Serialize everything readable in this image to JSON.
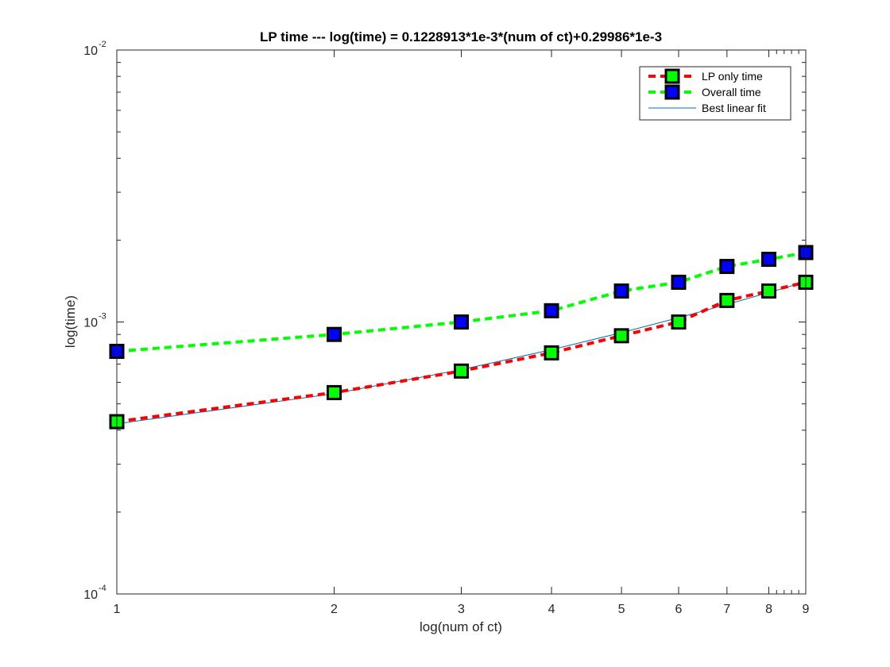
{
  "chart_data": {
    "type": "line",
    "title": "LP time --- log(time) = 0.1228913*1e-3*(num of ct)+0.29986*1e-3",
    "xlabel": "log(num of ct)",
    "ylabel": "log(time)",
    "xscale": "log",
    "yscale": "log",
    "xlim": [
      1,
      9
    ],
    "ylim": [
      0.0001,
      0.01
    ],
    "x_tick_labels": [
      "1",
      "2",
      "3",
      "4",
      "5",
      "6",
      "7",
      "8",
      "9"
    ],
    "y_tick_labels": [
      {
        "base": "10",
        "exp": "-4"
      },
      {
        "base": "10",
        "exp": "-3"
      },
      {
        "base": "10",
        "exp": "-2"
      }
    ],
    "grid": false,
    "legend_position": "top-right",
    "x": [
      1,
      2,
      3,
      4,
      5,
      6,
      7,
      8,
      9
    ],
    "series": [
      {
        "name": "LP only time",
        "values": [
          0.00043,
          0.00055,
          0.00066,
          0.00077,
          0.00089,
          0.001,
          0.0012,
          0.0013,
          0.0014
        ],
        "line_color": "#ff0000",
        "line_style": "dashed",
        "marker": "square",
        "marker_face": "#00ff00"
      },
      {
        "name": "Overall time",
        "values": [
          0.00078,
          0.0009,
          0.001,
          0.0011,
          0.0013,
          0.0014,
          0.0016,
          0.0017,
          0.0018
        ],
        "line_color": "#00ff00",
        "line_style": "dashed",
        "marker": "square",
        "marker_face": "#0000ff"
      },
      {
        "name": "Best linear fit",
        "values": [
          0.000422,
          0.000545,
          0.000668,
          0.000791,
          0.000914,
          0.001037,
          0.00116,
          0.001283,
          0.001406
        ],
        "line_color": "#0072bd",
        "line_style": "solid",
        "marker": "none"
      }
    ]
  }
}
